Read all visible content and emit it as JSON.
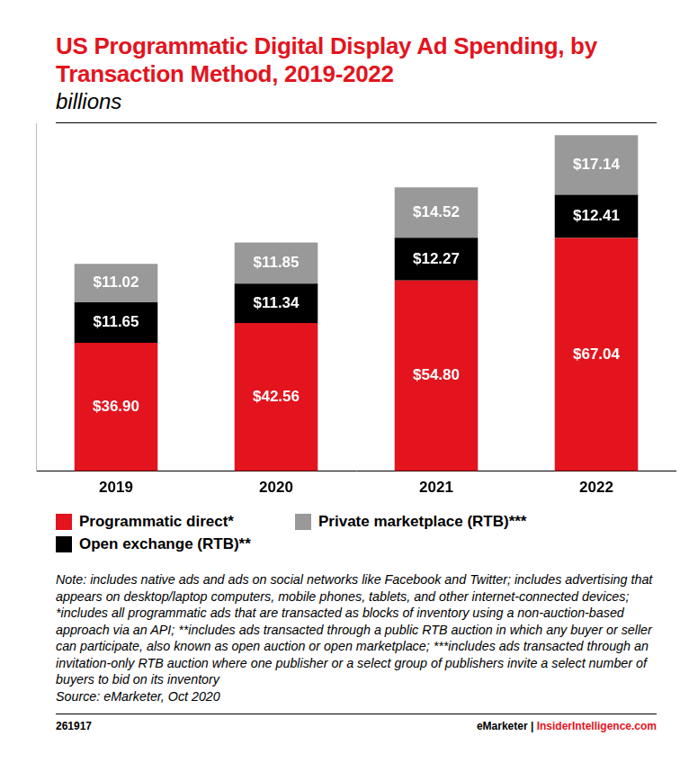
{
  "chart_data": {
    "type": "bar",
    "title": "US Programmatic Digital Display Ad Spending, by Transaction Method, 2019-2022",
    "subtitle": "billions",
    "categories": [
      "2019",
      "2020",
      "2021",
      "2022"
    ],
    "series": [
      {
        "name": "Programmatic direct*",
        "color": "#e3141e",
        "values": [
          36.9,
          42.56,
          54.8,
          67.04
        ],
        "value_labels": [
          "$36.90",
          "$42.56",
          "$54.80",
          "$67.04"
        ]
      },
      {
        "name": "Open exchange (RTB)**",
        "color": "#000000",
        "values": [
          11.65,
          11.34,
          12.27,
          12.41
        ],
        "value_labels": [
          "$11.65",
          "$11.34",
          "$12.27",
          "$12.41"
        ]
      },
      {
        "name": "Private marketplace (RTB)***",
        "color": "#999999",
        "values": [
          11.02,
          11.85,
          14.52,
          17.14
        ],
        "value_labels": [
          "$11.02",
          "$11.85",
          "$14.52",
          "$17.14"
        ]
      }
    ],
    "ylim": [
      0,
      100
    ],
    "stacked": true,
    "data_labels": true,
    "tick_labels": "x",
    "grid": false,
    "legend": "bottom",
    "note": "Note: includes native ads and ads on social networks like Facebook and Twitter; includes advertising that appears on desktop/laptop computers, mobile phones, tablets, and other internet-connected devices; *includes all programmatic ads that are transacted as blocks of inventory using a non-auction-based approach via an API; **includes ads transacted through a public RTB auction in which any buyer or seller can participate, also known as open auction or open marketplace; ***includes ads transacted through an invitation-only RTB auction where one publisher or a select group of publishers invite a select number of buyers to bid on its inventory",
    "source": "Source: eMarketer, Oct 2020",
    "footer": [
      "261917",
      "eMarketer | InsiderIntelligence.com"
    ]
  }
}
